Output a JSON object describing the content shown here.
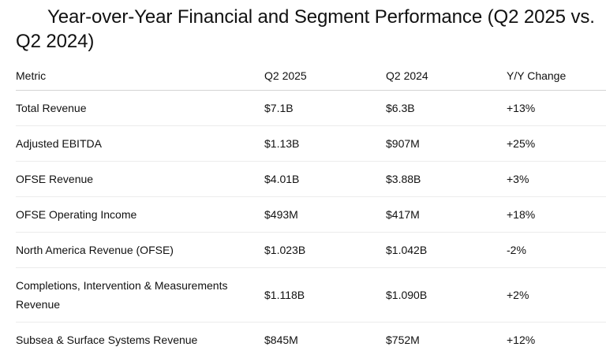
{
  "title": "Year-over-Year Financial and Segment Performance (Q2 2025 vs. Q2 2024)",
  "table": {
    "headers": [
      "Metric",
      "Q2 2025",
      "Q2 2024",
      "Y/Y Change"
    ],
    "rows": [
      [
        "Total Revenue",
        "$7.1B",
        "$6.3B",
        "+13%"
      ],
      [
        "Adjusted EBITDA",
        "$1.13B",
        "$907M",
        "+25%"
      ],
      [
        "OFSE Revenue",
        "$4.01B",
        "$3.88B",
        "+3%"
      ],
      [
        "OFSE Operating Income",
        "$493M",
        "$417M",
        "+18%"
      ],
      [
        "North America Revenue (OFSE)",
        "$1.023B",
        "$1.042B",
        "-2%"
      ],
      [
        "Completions, Intervention & Measurements Revenue",
        "$1.118B",
        "$1.090B",
        "+2%"
      ],
      [
        "Subsea & Surface Systems Revenue",
        "$845M",
        "$752M",
        "+12%"
      ]
    ]
  }
}
